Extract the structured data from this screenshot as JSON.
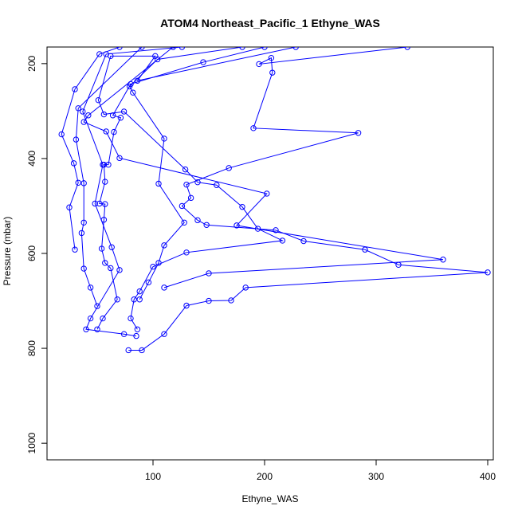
{
  "chart_data": {
    "type": "line",
    "title": "ATOM4 Northeast_Pacific_1 Ethyne_WAS",
    "xlabel": "Ethyne_WAS",
    "ylabel": "Pressure (mbar)",
    "xlim": [
      5,
      405
    ],
    "ylim": [
      1035,
      165
    ],
    "y_reversed": true,
    "x_ticks": [
      100,
      200,
      300,
      400
    ],
    "y_ticks": [
      200,
      400,
      600,
      800,
      1000
    ],
    "grid": false,
    "legend": "none",
    "colors": {
      "series": "#0000ff",
      "axes": "#000000",
      "background": "#ffffff"
    },
    "series": [
      {
        "values": [
          [
            70,
            165
          ],
          [
            52,
            180
          ],
          [
            30,
            254
          ],
          [
            18,
            349
          ],
          [
            29,
            410
          ],
          [
            33,
            451
          ],
          [
            25,
            503
          ],
          [
            30,
            592
          ]
        ]
      },
      {
        "values": [
          [
            90,
            165
          ],
          [
            33,
            294
          ],
          [
            31,
            360
          ],
          [
            38,
            452
          ],
          [
            38,
            535
          ],
          [
            36,
            557
          ],
          [
            38,
            632
          ],
          [
            44,
            672
          ],
          [
            50,
            711
          ]
        ]
      },
      {
        "values": [
          [
            118,
            165
          ],
          [
            42,
            309
          ],
          [
            38,
            323
          ],
          [
            58,
            343
          ],
          [
            70,
            399
          ],
          [
            202,
            474
          ],
          [
            175,
            541
          ],
          [
            360,
            613
          ],
          [
            150,
            642
          ],
          [
            110,
            672
          ]
        ]
      },
      {
        "values": [
          [
            126,
            165
          ],
          [
            58,
            180
          ],
          [
            37,
            301
          ],
          [
            55,
            413
          ],
          [
            48,
            495
          ],
          [
            63,
            587
          ],
          [
            70,
            635
          ],
          [
            44,
            737
          ],
          [
            40,
            760
          ],
          [
            74,
            770
          ],
          [
            85,
            774
          ]
        ]
      },
      {
        "values": [
          [
            180,
            165
          ],
          [
            104,
            191
          ],
          [
            79,
            248
          ],
          [
            82,
            261
          ],
          [
            110,
            358
          ],
          [
            105,
            453
          ],
          [
            128,
            535
          ],
          [
            110,
            583
          ],
          [
            105,
            620
          ],
          [
            96,
            661
          ],
          [
            88,
            697
          ]
        ]
      },
      {
        "values": [
          [
            200,
            165
          ],
          [
            145,
            197
          ],
          [
            80,
            243
          ],
          [
            64,
            309
          ],
          [
            71,
            314
          ],
          [
            65,
            344
          ],
          [
            60,
            413
          ],
          [
            56,
            413
          ],
          [
            57,
            449
          ],
          [
            52,
            495
          ],
          [
            57,
            496
          ],
          [
            56,
            529
          ],
          [
            54,
            590
          ],
          [
            57,
            620
          ],
          [
            62,
            631
          ],
          [
            68,
            697
          ],
          [
            55,
            737
          ],
          [
            50,
            760
          ]
        ]
      },
      {
        "values": [
          [
            228,
            165
          ],
          [
            86,
            236
          ],
          [
            102,
            184
          ],
          [
            62,
            184
          ],
          [
            51,
            277
          ],
          [
            56,
            307
          ],
          [
            74,
            301
          ],
          [
            129,
            423
          ],
          [
            140,
            450
          ],
          [
            157,
            456
          ],
          [
            180,
            502
          ],
          [
            194,
            548
          ],
          [
            216,
            573
          ],
          [
            130,
            598
          ],
          [
            100,
            628
          ],
          [
            88,
            680
          ],
          [
            83,
            697
          ],
          [
            80,
            737
          ],
          [
            86,
            760
          ]
        ]
      },
      {
        "values": [
          [
            328,
            165
          ],
          [
            195,
            201
          ],
          [
            206,
            188
          ],
          [
            207,
            219
          ],
          [
            190,
            336
          ],
          [
            284,
            346
          ],
          [
            168,
            420
          ],
          [
            130,
            455
          ],
          [
            134,
            483
          ],
          [
            126,
            500
          ],
          [
            140,
            530
          ],
          [
            148,
            540
          ],
          [
            210,
            551
          ],
          [
            235,
            574
          ],
          [
            290,
            592
          ],
          [
            320,
            624
          ],
          [
            400,
            640
          ],
          [
            183,
            672
          ],
          [
            170,
            699
          ],
          [
            150,
            700
          ],
          [
            130,
            710
          ],
          [
            110,
            770
          ],
          [
            90,
            804
          ],
          [
            78,
            804
          ]
        ]
      }
    ]
  }
}
